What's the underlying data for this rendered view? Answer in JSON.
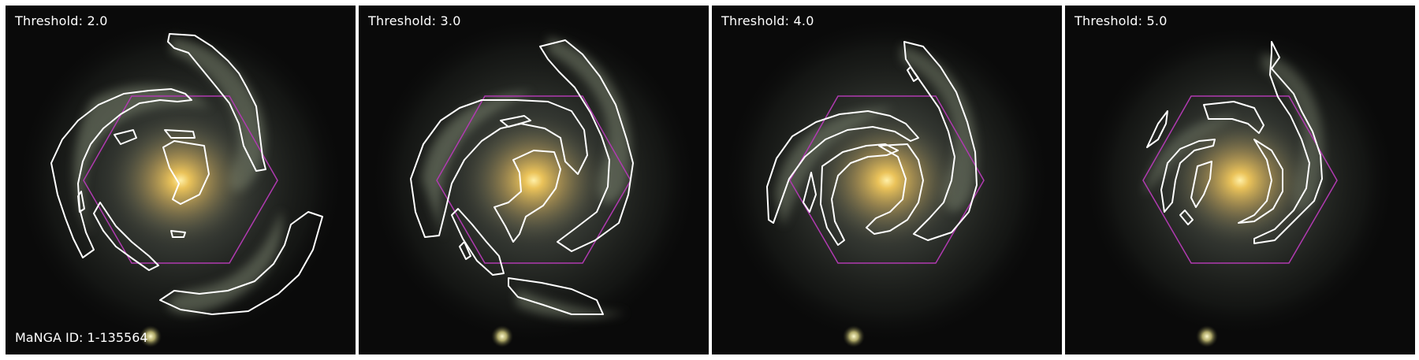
{
  "figure": {
    "manga_id_label": "MaNGA ID: 1-135564",
    "panels": [
      {
        "threshold_label": "Threshold: 2.0"
      },
      {
        "threshold_label": "Threshold: 3.0"
      },
      {
        "threshold_label": "Threshold: 4.0"
      },
      {
        "threshold_label": "Threshold: 5.0"
      }
    ],
    "colors": {
      "contour": "#ffffff",
      "ifu_hexagon": "#b03ab0",
      "galaxy_core": "#f2c85a",
      "background": "#0a0a0a"
    }
  }
}
